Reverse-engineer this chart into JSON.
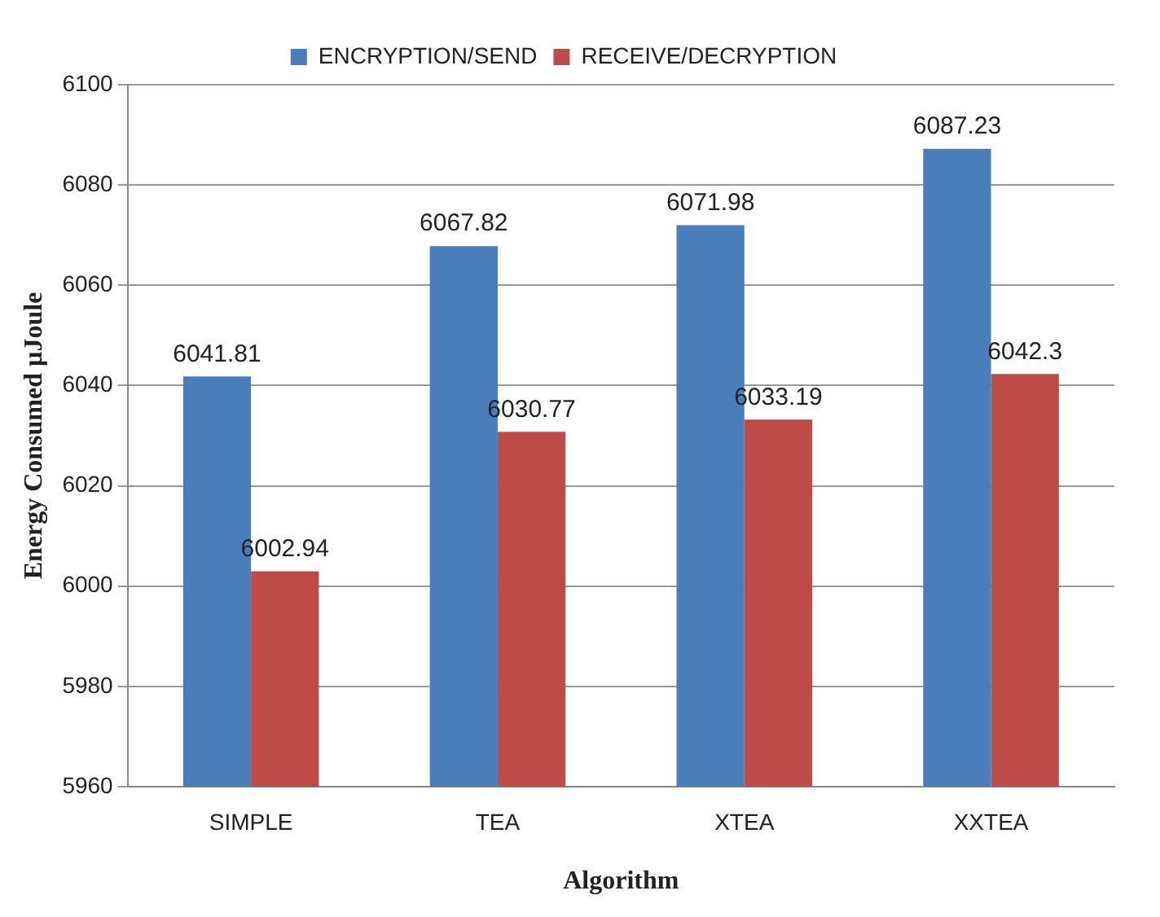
{
  "chart_data": {
    "type": "bar",
    "xlabel": "Algorithm",
    "ylabel": "Energy Consumed µJoule",
    "categories": [
      "SIMPLE",
      "TEA",
      "XTEA",
      "XXTEA"
    ],
    "series": [
      {
        "name": "ENCRYPTION/SEND",
        "color": "#4a7ebb",
        "values": [
          6041.81,
          6067.82,
          6071.98,
          6087.23
        ]
      },
      {
        "name": "RECEIVE/DECRYPTION",
        "color": "#be4b48",
        "values": [
          6002.94,
          6030.77,
          6033.19,
          6042.3
        ]
      }
    ],
    "ylim": [
      5960,
      6100
    ],
    "yticks": [
      5960,
      5980,
      6000,
      6020,
      6040,
      6060,
      6080,
      6100
    ],
    "grid": "y",
    "legend": "top",
    "data_labels": true
  }
}
